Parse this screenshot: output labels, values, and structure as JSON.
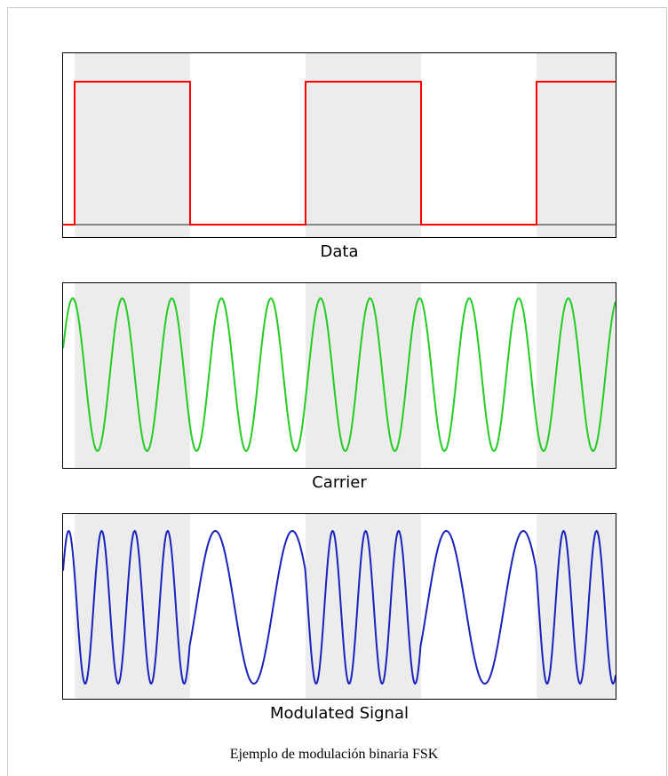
{
  "figure": {
    "caption": "Ejemplo de modulación binaria FSK",
    "shading_color": "#ececec",
    "bits": [
      1,
      0,
      1,
      0,
      1
    ],
    "bit_span": 2.3,
    "panels": [
      {
        "id": "data",
        "label": "Data",
        "color": "#ff0000"
      },
      {
        "id": "carrier",
        "label": "Carrier",
        "color": "#22cc22",
        "cycles_per_bit": 2.33
      },
      {
        "id": "modulated",
        "label": "Modulated Signal",
        "color": "#1a22bb",
        "cycles_per_one_bit": 3.5,
        "cycles_per_zero_bit": 1.5
      }
    ]
  }
}
